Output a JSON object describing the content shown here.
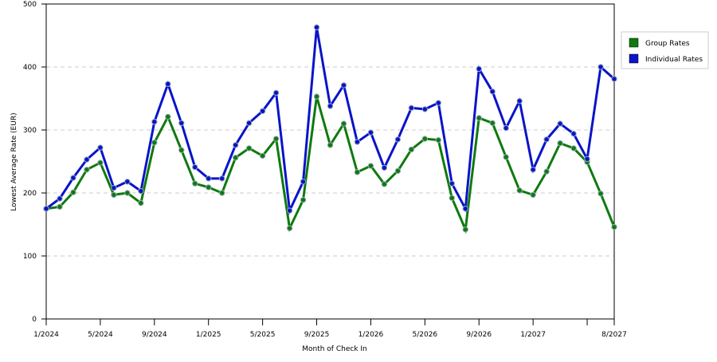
{
  "chart_data": {
    "type": "line",
    "x_label": "Month of Check In",
    "y_label": "Lowest Average Rate (EUR)",
    "categories": [
      "1/2024",
      null,
      null,
      null,
      "5/2024",
      null,
      null,
      null,
      "9/2024",
      null,
      null,
      null,
      "1/2025",
      null,
      null,
      null,
      "5/2025",
      null,
      null,
      null,
      "9/2025",
      null,
      null,
      null,
      "1/2026",
      null,
      null,
      null,
      "5/2026",
      null,
      null,
      null,
      "9/2026",
      null,
      null,
      null,
      "1/2027",
      null,
      null,
      null,
      null,
      null,
      "8/2027"
    ],
    "series": [
      {
        "name": "Group Rates",
        "color": "#0f7a0f",
        "values": [
          175,
          178,
          201,
          237,
          248,
          197,
          200,
          184,
          280,
          321,
          268,
          215,
          209,
          200,
          256,
          271,
          259,
          286,
          144,
          189,
          353,
          276,
          310,
          233,
          243,
          214,
          235,
          269,
          286,
          284,
          192,
          142,
          319,
          311,
          257,
          204,
          197,
          234,
          279,
          271,
          249,
          199,
          146
        ]
      },
      {
        "name": "Individual Rates",
        "color": "#0a14c8",
        "values": [
          175,
          191,
          224,
          253,
          272,
          208,
          218,
          203,
          313,
          373,
          311,
          241,
          223,
          223,
          276,
          311,
          330,
          359,
          172,
          218,
          463,
          338,
          371,
          281,
          296,
          240,
          285,
          335,
          333,
          343,
          215,
          175,
          397,
          361,
          303,
          346,
          237,
          285,
          310,
          294,
          254,
          400,
          381
        ]
      }
    ],
    "ylim": [
      0,
      500
    ],
    "yticks": [
      0,
      100,
      200,
      300,
      400,
      500
    ],
    "grid": true,
    "legend": "top-right"
  }
}
